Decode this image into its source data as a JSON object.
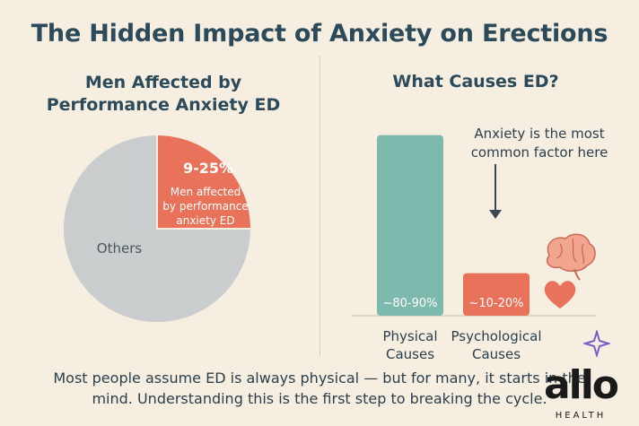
{
  "title": "The Hidden Impact of Anxiety on Erections",
  "chart_data": [
    {
      "type": "pie",
      "title": "Men Affected by Performance Anxiety ED",
      "slices": [
        {
          "label": "9-25%",
          "value": 25,
          "description": "Men affected by performance anxiety ED",
          "color": "#e8735a"
        },
        {
          "label": "Others",
          "value": 75,
          "color": "#c9cdcd"
        }
      ]
    },
    {
      "type": "bar",
      "title": "What Causes ED?",
      "categories": [
        "Physical Causes",
        "Psychological Causes"
      ],
      "values": [
        85,
        20
      ],
      "ylim": [
        0,
        100
      ],
      "data_labels": [
        "~80-90%",
        "~10-20%"
      ],
      "colors": [
        "#7db9ad",
        "#e8735a"
      ],
      "annotation": "Anxiety is the most common factor here"
    }
  ],
  "footer": {
    "line1": "Most people assume ED is always physical — but for many, it starts in the",
    "line2": "mind. Understanding this is the first step to breaking the cycle."
  },
  "brand": {
    "name": "allo",
    "sub": "HEALTH"
  },
  "icons": [
    "brain-icon",
    "heart-icon",
    "arrow-down-icon",
    "sparkle-icon"
  ]
}
